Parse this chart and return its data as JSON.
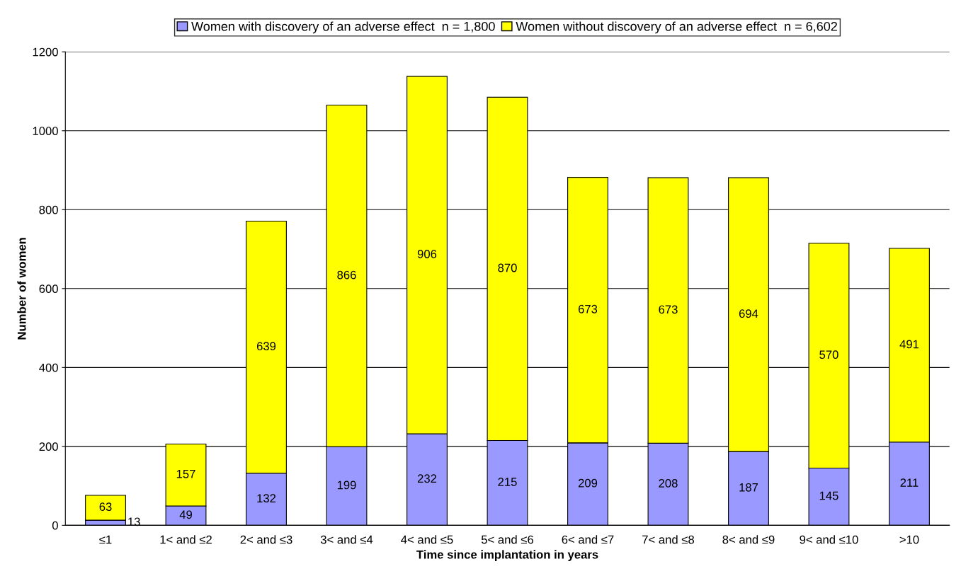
{
  "chart_data": {
    "type": "bar",
    "stacked": true,
    "xlabel": "Time since implantation in years",
    "ylabel": "Number of women",
    "categories": [
      "≤1",
      "1< and ≤2",
      "2< and ≤3",
      "3< and ≤4",
      "4< and ≤5",
      "5< and ≤6",
      "6< and ≤7",
      "7< and ≤8",
      "8< and ≤9",
      "9< and ≤10",
      ">10"
    ],
    "series": [
      {
        "name": "Women with discovery of an adverse effect  n = 1,800",
        "color": "#9999ff",
        "values": [
          13,
          49,
          132,
          199,
          232,
          215,
          209,
          208,
          187,
          145,
          211
        ]
      },
      {
        "name": "Women without discovery of an adverse effect  n = 6,602",
        "color": "#ffff00",
        "values": [
          63,
          157,
          639,
          866,
          906,
          870,
          673,
          673,
          694,
          570,
          491
        ]
      }
    ],
    "ylim": [
      0,
      1200
    ],
    "yticks": [
      0,
      200,
      400,
      600,
      800,
      1000,
      1200
    ],
    "grid": "y",
    "legend": "top",
    "data_labels": true
  }
}
